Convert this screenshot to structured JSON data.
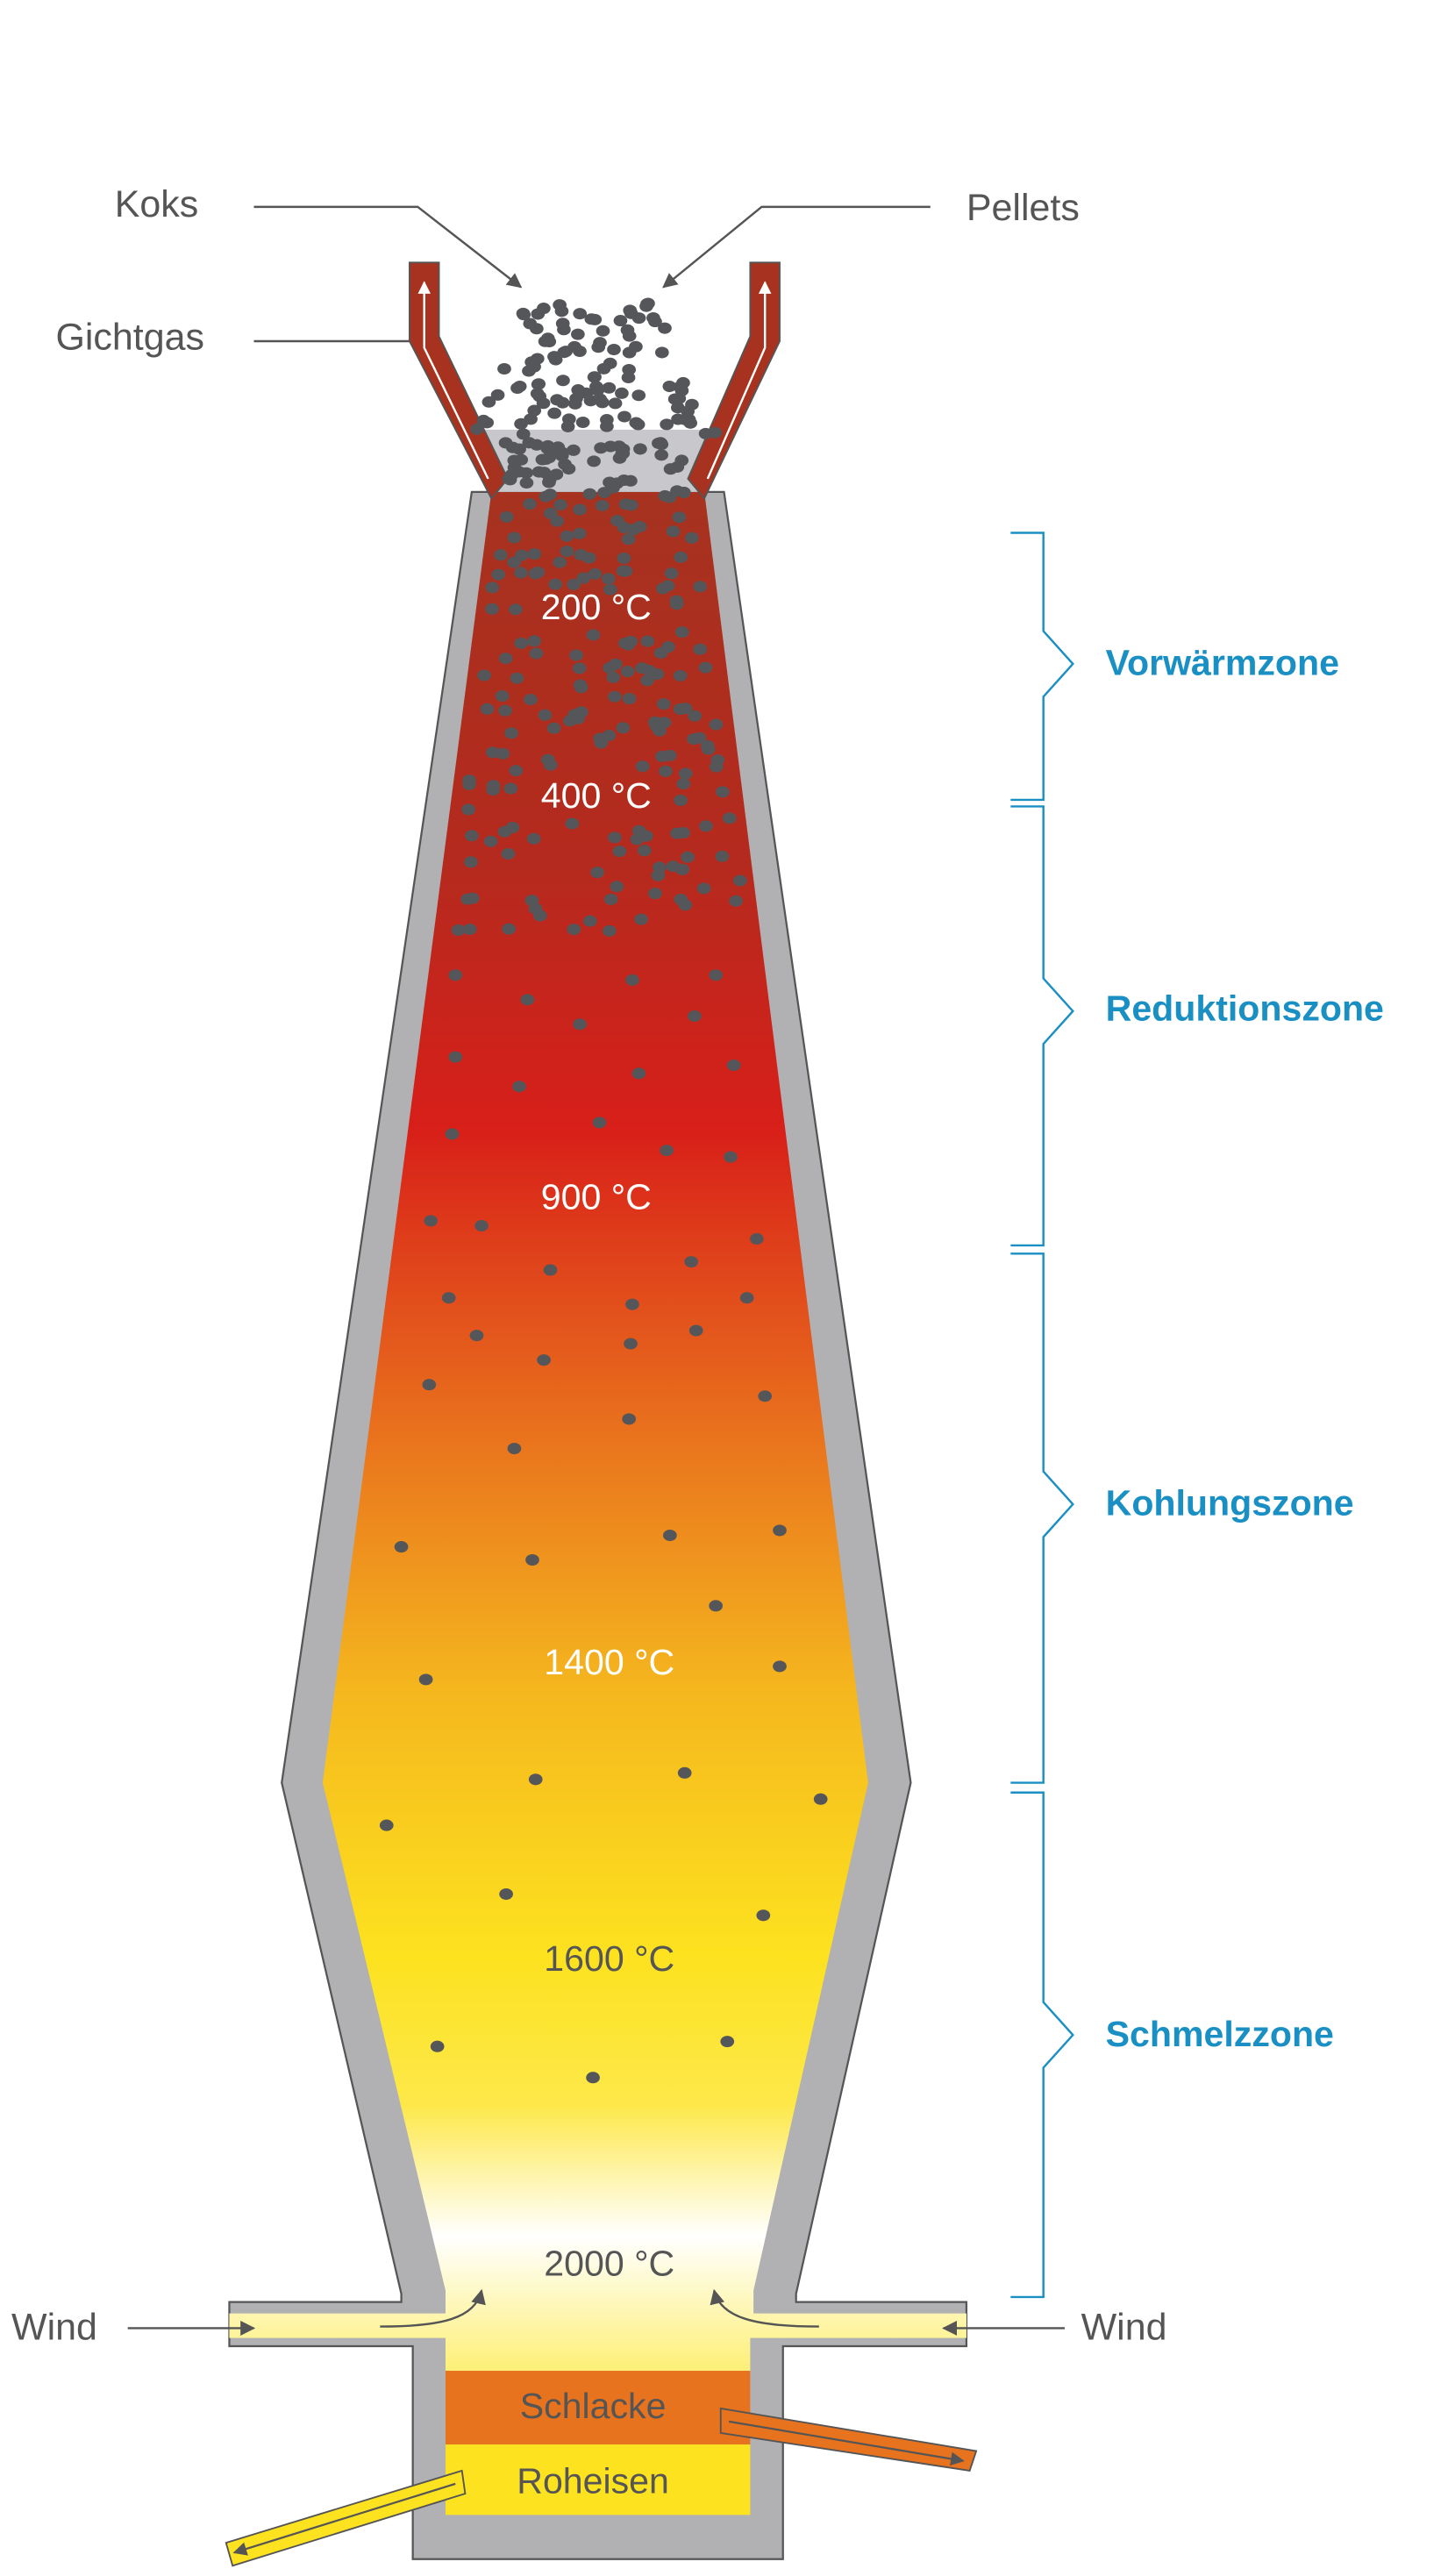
{
  "labels": {
    "koks": "Koks",
    "pellets": "Pellets",
    "gichtgas": "Gichtgas"
  },
  "temperatures": [
    "200 °C",
    "400 °C",
    "900 °C",
    "1400 °C",
    "1600 °C",
    "2000 °C"
  ],
  "zones": [
    "Vorwärmzone",
    "Reduktionszone",
    "Kohlungszone",
    "Schmelzzone"
  ],
  "wind": [
    "Wind",
    "Wind"
  ],
  "hearth": {
    "slag": "Schlacke",
    "iron": "Roheisen"
  }
}
